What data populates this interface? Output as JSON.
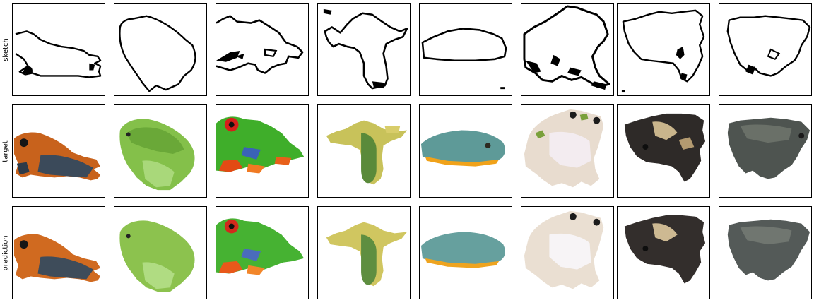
{
  "rows": [
    {
      "label": "sketch"
    },
    {
      "label": "target"
    },
    {
      "label": "prediction"
    }
  ],
  "columns": [
    {
      "subject": "orange-blue poison dart frog",
      "body_color": "#c8621c",
      "accent_color": "#3b4a5a"
    },
    {
      "subject": "green tree frogs (pair)",
      "body_color": "#84c04a",
      "accent_color": "#a9d87a"
    },
    {
      "subject": "red-eyed tree frog",
      "body_color": "#3fae2a",
      "accent_color": "#e24a14"
    },
    {
      "subject": "yellow-green frog, top view",
      "body_color": "#c8c25a",
      "accent_color": "#5a8a3a"
    },
    {
      "subject": "flat blue-green frog",
      "body_color": "#5e9a98",
      "accent_color": "#f0a21a"
    },
    {
      "subject": "spotted pale frog",
      "body_color": "#e8dccf",
      "accent_color": "#7aa03a"
    },
    {
      "subject": "dark mottled frog",
      "body_color": "#2e2a28",
      "accent_color": "#c9b58c"
    },
    {
      "subject": "gray toad",
      "body_color": "#4e5450",
      "accent_color": "#6a7068"
    }
  ]
}
